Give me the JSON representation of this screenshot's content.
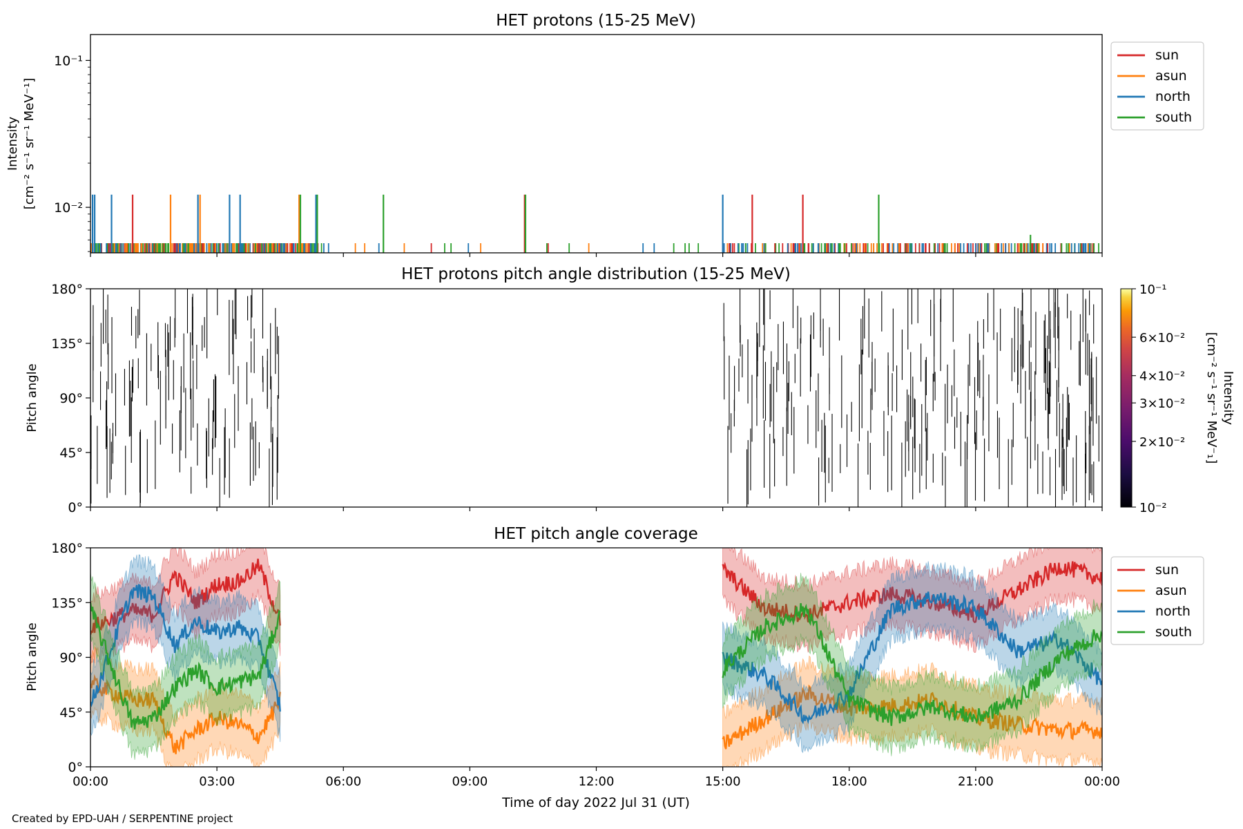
{
  "figure": {
    "footer": "Created by EPD-UAH / SERPENTINE project",
    "xlabel": "Time of day 2022 Jul 31 (UT)",
    "xticks": [
      "00:00",
      "03:00",
      "06:00",
      "09:00",
      "12:00",
      "15:00",
      "18:00",
      "21:00",
      "00:00"
    ]
  },
  "colors": {
    "sun": "#d62728",
    "asun": "#ff7f0e",
    "north": "#1f77b4",
    "south": "#2ca02c"
  },
  "chart_data": [
    {
      "type": "line",
      "title": "HET protons (15-25 MeV)",
      "ylabel_line1": "Intensity",
      "ylabel_line2": "[cm⁻² s⁻¹ sr⁻¹ MeV⁻¹]",
      "y_scale": "log",
      "ylim": [
        0.0049,
        0.15
      ],
      "ytick_labels": [
        "10⁻²",
        "10⁻¹"
      ],
      "yticks": [
        0.01,
        0.1
      ],
      "xlim_hours": [
        0,
        24
      ],
      "legend_placement": "outside-right",
      "baseline_intensity": 0.0057,
      "series": [
        {
          "name": "sun",
          "color_key": "sun",
          "spikes": [
            {
              "t": 1.0,
              "v": 0.0122
            },
            {
              "t": 10.3,
              "v": 0.0122
            },
            {
              "t": 15.7,
              "v": 0.0122
            },
            {
              "t": 16.9,
              "v": 0.0122
            }
          ]
        },
        {
          "name": "asun",
          "color_key": "asun",
          "spikes": [
            {
              "t": 1.9,
              "v": 0.0122
            },
            {
              "t": 2.6,
              "v": 0.0122
            },
            {
              "t": 4.95,
              "v": 0.0122
            }
          ]
        },
        {
          "name": "north",
          "color_key": "north",
          "spikes": [
            {
              "t": 0.05,
              "v": 0.0122
            },
            {
              "t": 0.1,
              "v": 0.0122
            },
            {
              "t": 0.5,
              "v": 0.0122
            },
            {
              "t": 2.55,
              "v": 0.0122
            },
            {
              "t": 3.3,
              "v": 0.0122
            },
            {
              "t": 3.55,
              "v": 0.0122
            },
            {
              "t": 5.35,
              "v": 0.0122
            },
            {
              "t": 15.0,
              "v": 0.0122
            }
          ]
        },
        {
          "name": "south",
          "color_key": "south",
          "spikes": [
            {
              "t": 4.98,
              "v": 0.0122
            },
            {
              "t": 5.38,
              "v": 0.0122
            },
            {
              "t": 6.95,
              "v": 0.0122
            },
            {
              "t": 10.32,
              "v": 0.0122
            },
            {
              "t": 18.7,
              "v": 0.0122
            },
            {
              "t": 22.3,
              "v": 0.0065
            }
          ]
        }
      ]
    },
    {
      "type": "heatmap",
      "title": "HET protons pitch angle distribution (15-25 MeV)",
      "ylabel": "Pitch angle",
      "ylim": [
        0,
        180
      ],
      "ytick_labels": [
        "0°",
        "45°",
        "90°",
        "135°",
        "180°"
      ],
      "xlim_hours": [
        0,
        24
      ],
      "colorbar": {
        "label_line1": "Intensity",
        "label_line2": "[cm⁻² s⁻¹ sr⁻¹ MeV⁻₁]",
        "scale": "log",
        "range": [
          0.01,
          0.1
        ],
        "tick_labels": [
          "10⁻²",
          "2×10⁻²",
          "3×10⁻²",
          "4×10⁻²",
          "6×10⁻²",
          "10⁻¹"
        ],
        "tick_values": [
          0.01,
          0.02,
          0.03,
          0.04,
          0.06,
          0.1
        ],
        "colormap": "inferno"
      },
      "data_intervals_hours": [
        [
          0,
          4.5
        ],
        [
          15,
          24
        ]
      ]
    },
    {
      "type": "area",
      "title": "HET pitch angle coverage",
      "ylabel": "Pitch angle",
      "ylim": [
        0,
        180
      ],
      "ytick_labels": [
        "0°",
        "45°",
        "90°",
        "135°",
        "180°"
      ],
      "xlim_hours": [
        0,
        24
      ],
      "legend_placement": "outside-right",
      "data_intervals_hours": [
        [
          0,
          4.5
        ],
        [
          15,
          24
        ]
      ],
      "band_halfwidth_deg": 25,
      "series": [
        {
          "name": "sun",
          "color_key": "sun",
          "t": [
            0,
            1,
            1.5,
            2,
            2.5,
            3,
            3.5,
            4,
            4.5,
            15,
            16,
            17,
            18,
            19,
            20,
            21,
            22,
            23,
            24
          ],
          "v": [
            115,
            128,
            125,
            158,
            135,
            150,
            152,
            165,
            120,
            162,
            130,
            125,
            135,
            142,
            135,
            125,
            145,
            165,
            155
          ]
        },
        {
          "name": "asun",
          "color_key": "asun",
          "t": [
            0,
            1,
            1.5,
            2,
            2.5,
            3,
            3.5,
            4,
            4.5,
            15,
            16,
            17,
            18,
            19,
            20,
            21,
            22,
            23,
            24
          ],
          "v": [
            68,
            55,
            55,
            15,
            30,
            40,
            35,
            25,
            55,
            18,
            40,
            60,
            48,
            50,
            55,
            40,
            35,
            30,
            30
          ]
        },
        {
          "name": "north",
          "color_key": "north",
          "t": [
            0,
            1,
            1.5,
            2,
            2.5,
            3,
            3.5,
            4,
            4.5,
            15,
            16,
            17,
            18,
            19,
            20,
            21,
            22,
            23,
            24
          ],
          "v": [
            50,
            145,
            140,
            100,
            120,
            110,
            115,
            105,
            50,
            90,
            75,
            40,
            60,
            130,
            140,
            130,
            95,
            105,
            70
          ]
        },
        {
          "name": "south",
          "color_key": "south",
          "t": [
            0,
            1,
            1.5,
            2,
            2.5,
            3,
            3.5,
            4,
            4.5,
            15,
            16,
            17,
            18,
            19,
            20,
            21,
            22,
            23,
            24
          ],
          "v": [
            130,
            35,
            40,
            65,
            80,
            65,
            70,
            75,
            125,
            80,
            115,
            130,
            55,
            40,
            50,
            40,
            55,
            90,
            110
          ]
        }
      ]
    }
  ]
}
